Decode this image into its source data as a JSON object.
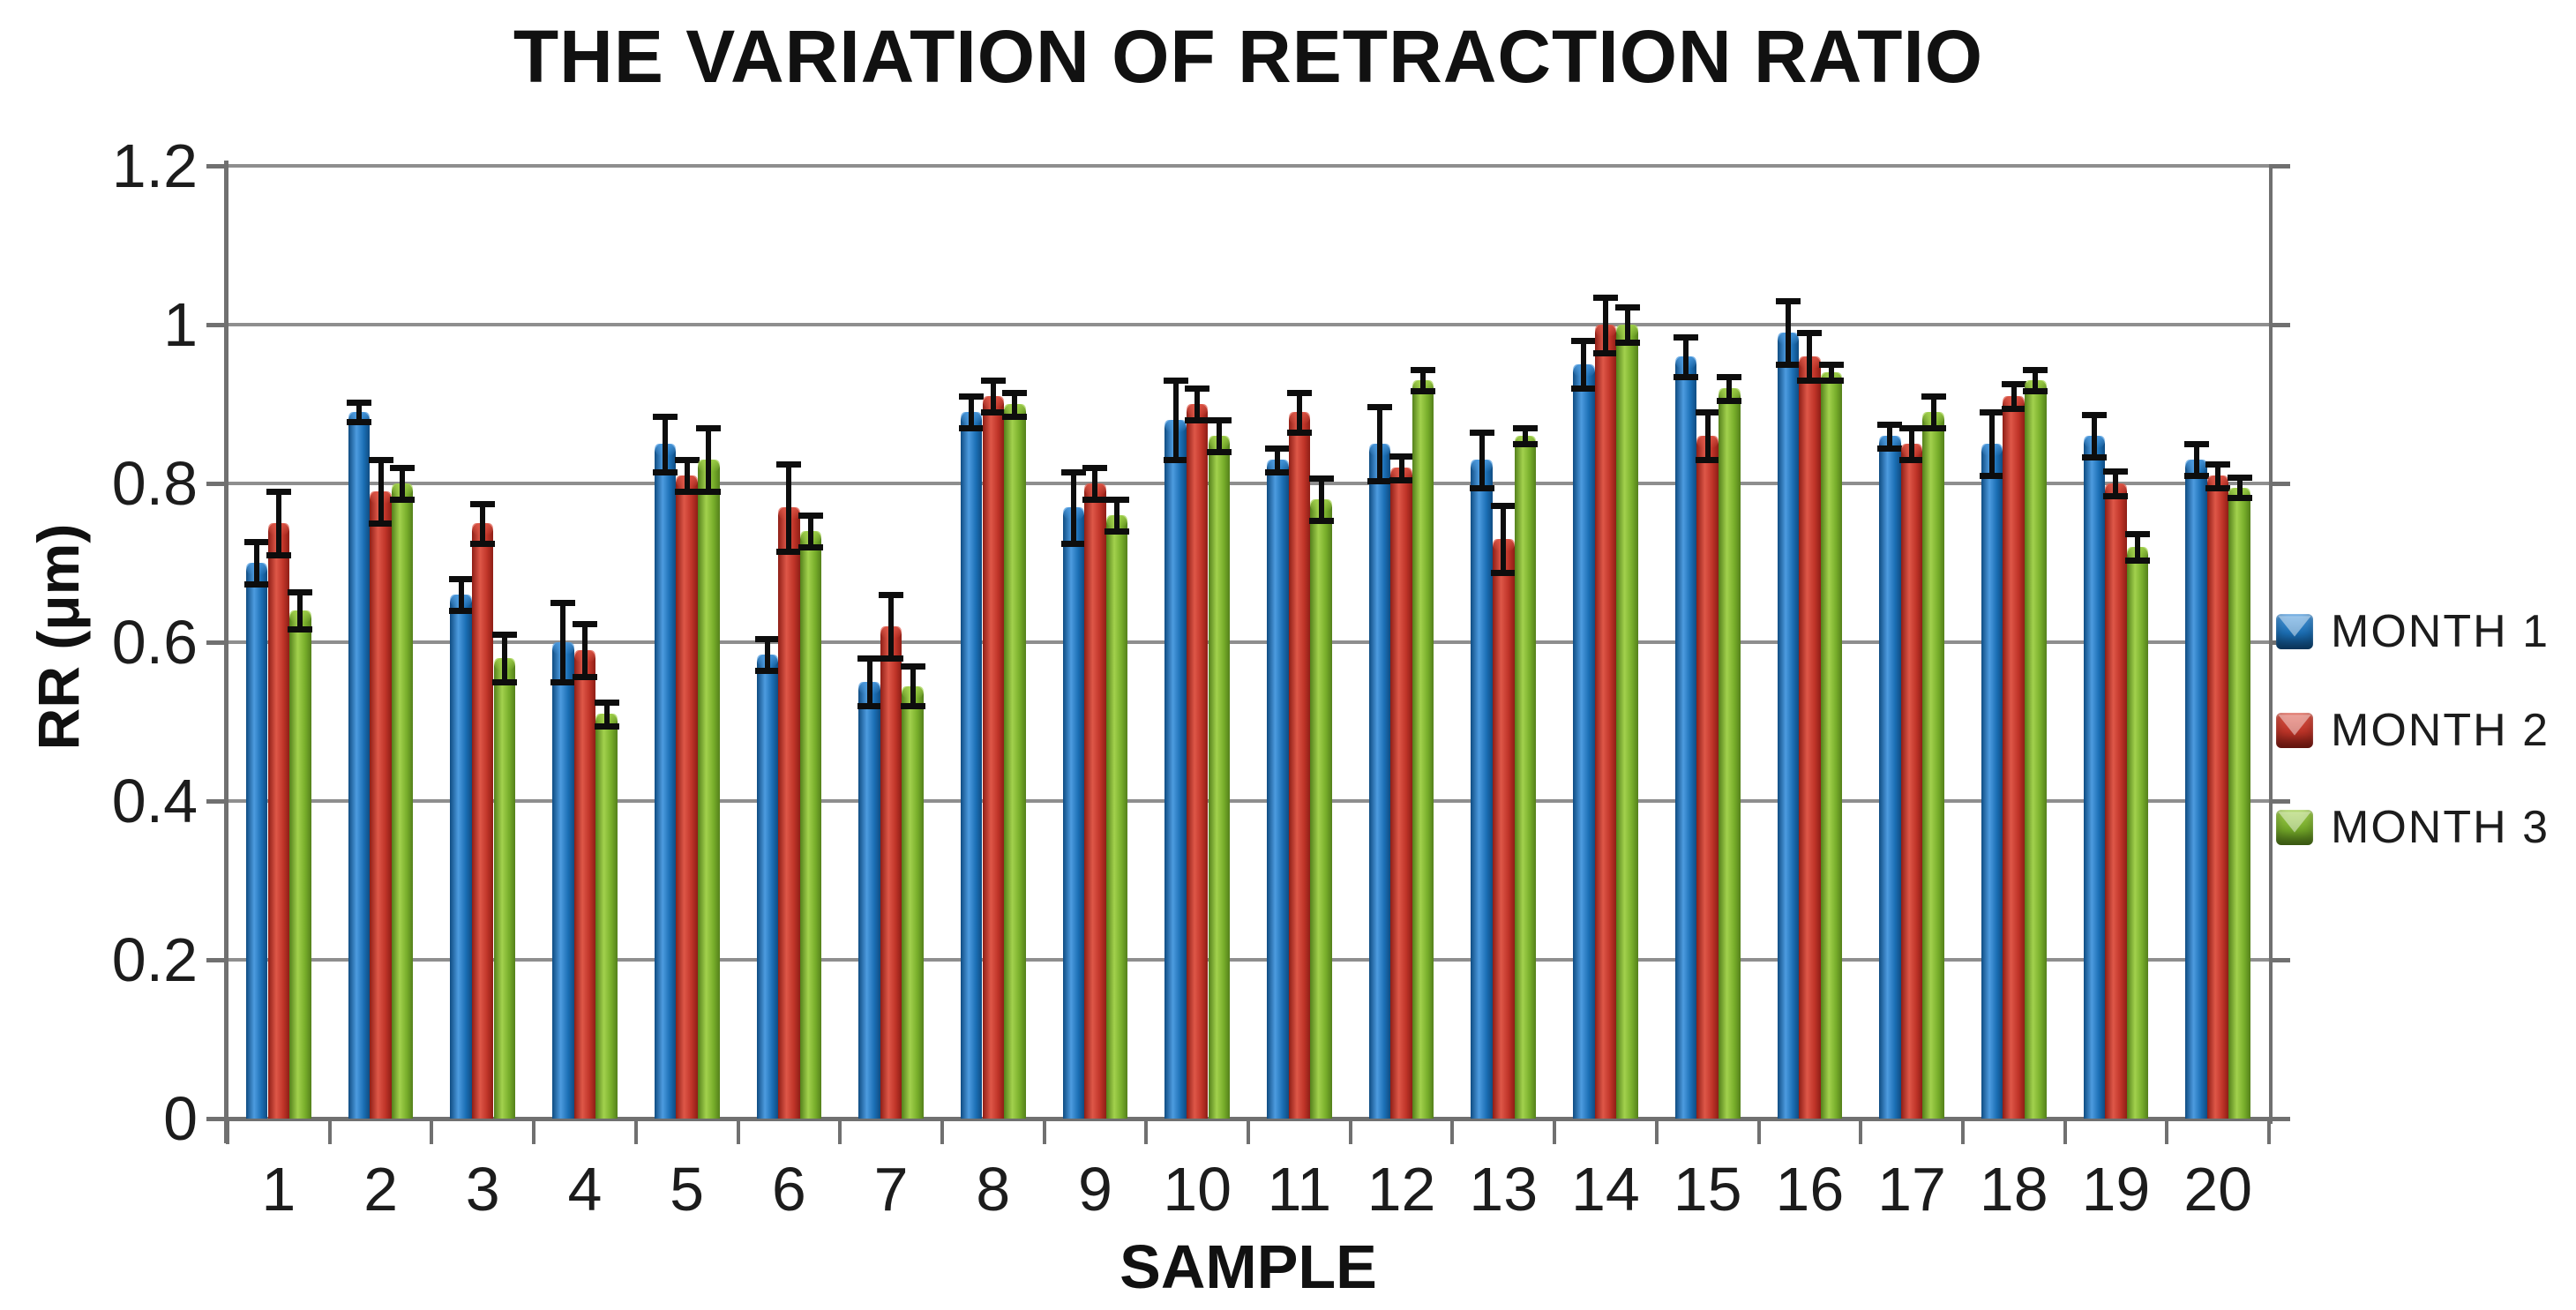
{
  "chart_data": {
    "type": "bar",
    "title": "THE VARIATION OF RETRACTION RATIO",
    "xlabel": "SAMPLE",
    "ylabel": "RR (μm)",
    "ylim": [
      0,
      1.2
    ],
    "ytick_labels": [
      "0",
      "0.2",
      "0.4",
      "0.6",
      "0.8",
      "1",
      "1.2"
    ],
    "yticks": [
      0,
      0.2,
      0.4,
      0.6,
      0.8,
      1,
      1.2
    ],
    "grid": true,
    "legend_position": "right",
    "error_bars": true,
    "categories": [
      "1",
      "2",
      "3",
      "4",
      "5",
      "6",
      "7",
      "8",
      "9",
      "10",
      "11",
      "12",
      "13",
      "14",
      "15",
      "16",
      "17",
      "18",
      "19",
      "20"
    ],
    "series": [
      {
        "name": "MONTH 1",
        "color": "#1B6FB5",
        "color_light": "#4D9BDF",
        "color_dark": "#0F4C82",
        "values": [
          0.7,
          0.89,
          0.66,
          0.6,
          0.85,
          0.585,
          0.55,
          0.89,
          0.77,
          0.88,
          0.83,
          0.85,
          0.83,
          0.95,
          0.96,
          0.99,
          0.86,
          0.85,
          0.86,
          0.83
        ],
        "errors": [
          0.027,
          0.012,
          0.02,
          0.05,
          0.035,
          0.02,
          0.03,
          0.02,
          0.045,
          0.05,
          0.015,
          0.047,
          0.035,
          0.03,
          0.025,
          0.04,
          0.015,
          0.04,
          0.027,
          0.02
        ]
      },
      {
        "name": "MONTH 2",
        "color": "#BF3428",
        "color_light": "#DE5748",
        "color_dark": "#8E1E16",
        "values": [
          0.75,
          0.79,
          0.75,
          0.59,
          0.81,
          0.77,
          0.62,
          0.91,
          0.8,
          0.9,
          0.89,
          0.82,
          0.73,
          1.0,
          0.86,
          0.96,
          0.85,
          0.91,
          0.8,
          0.81
        ],
        "errors": [
          0.04,
          0.04,
          0.025,
          0.033,
          0.02,
          0.055,
          0.04,
          0.02,
          0.02,
          0.02,
          0.025,
          0.015,
          0.042,
          0.035,
          0.03,
          0.03,
          0.02,
          0.016,
          0.016,
          0.015
        ]
      },
      {
        "name": "MONTH 3",
        "color": "#77AD2A",
        "color_light": "#A2D14D",
        "color_dark": "#54801B",
        "values": [
          0.64,
          0.8,
          0.58,
          0.51,
          0.83,
          0.74,
          0.545,
          0.9,
          0.76,
          0.86,
          0.78,
          0.93,
          0.86,
          1.0,
          0.92,
          0.94,
          0.89,
          0.93,
          0.72,
          0.795
        ],
        "errors": [
          0.023,
          0.02,
          0.03,
          0.015,
          0.04,
          0.02,
          0.025,
          0.015,
          0.02,
          0.02,
          0.027,
          0.013,
          0.01,
          0.022,
          0.015,
          0.01,
          0.02,
          0.013,
          0.017,
          0.013
        ]
      }
    ],
    "colors": {
      "gridline": "#8E8E8E",
      "axis": "#707070",
      "error_bar": "#0D0D0D",
      "text": "#1C1C1C",
      "background": "#FFFFFF"
    }
  }
}
